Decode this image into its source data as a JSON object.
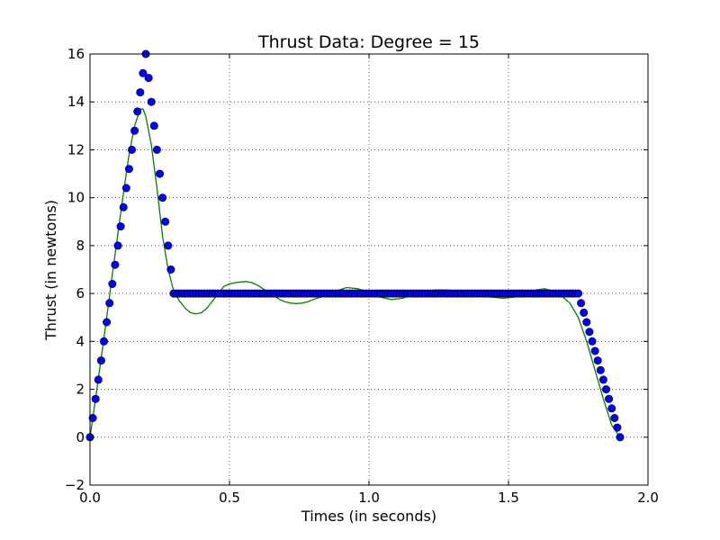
{
  "chart_data": {
    "type": "scatter",
    "title": "Thrust Data: Degree = 15",
    "xlabel": "Times (in seconds)",
    "ylabel": "Thrust (in newtons)",
    "xlim": [
      0.0,
      2.0
    ],
    "ylim": [
      -2,
      16
    ],
    "xticks": [
      "0.0",
      "0.5",
      "1.0",
      "1.5",
      "2.0"
    ],
    "yticks": [
      "−2",
      "0",
      "2",
      "4",
      "6",
      "8",
      "10",
      "12",
      "14",
      "16"
    ],
    "grid": true,
    "series": [
      {
        "kind": "markers",
        "color": "#0000ff",
        "x": [
          0.0,
          0.01,
          0.02,
          0.03,
          0.04,
          0.05,
          0.06,
          0.07,
          0.08,
          0.09,
          0.1,
          0.11,
          0.12,
          0.13,
          0.14,
          0.15,
          0.16,
          0.17,
          0.18,
          0.19,
          0.2,
          0.21,
          0.22,
          0.23,
          0.24,
          0.25,
          0.26,
          0.27,
          0.28,
          0.29,
          0.3,
          0.31,
          0.32,
          0.33,
          0.34,
          0.35,
          0.36,
          0.37,
          0.38,
          0.39,
          0.4,
          0.41,
          0.42,
          0.43,
          0.44,
          0.45,
          0.46,
          0.47,
          0.48,
          0.49,
          0.5,
          0.51,
          0.52,
          0.53,
          0.54,
          0.55,
          0.56,
          0.57,
          0.58,
          0.59,
          0.6,
          0.61,
          0.62,
          0.63,
          0.64,
          0.65,
          0.66,
          0.67,
          0.68,
          0.69,
          0.7,
          0.71,
          0.72,
          0.73,
          0.74,
          0.75,
          0.76,
          0.77,
          0.78,
          0.79,
          0.8,
          0.81,
          0.82,
          0.83,
          0.84,
          0.85,
          0.86,
          0.87,
          0.88,
          0.89,
          0.9,
          0.91,
          0.92,
          0.93,
          0.94,
          0.95,
          0.96,
          0.97,
          0.98,
          0.99,
          1.0,
          1.01,
          1.02,
          1.03,
          1.04,
          1.05,
          1.06,
          1.07,
          1.08,
          1.09,
          1.1,
          1.11,
          1.12,
          1.13,
          1.14,
          1.15,
          1.16,
          1.17,
          1.18,
          1.19,
          1.2,
          1.21,
          1.22,
          1.23,
          1.24,
          1.25,
          1.26,
          1.27,
          1.28,
          1.29,
          1.3,
          1.31,
          1.32,
          1.33,
          1.34,
          1.35,
          1.36,
          1.37,
          1.38,
          1.39,
          1.4,
          1.41,
          1.42,
          1.43,
          1.44,
          1.45,
          1.46,
          1.47,
          1.48,
          1.49,
          1.5,
          1.51,
          1.52,
          1.53,
          1.54,
          1.55,
          1.56,
          1.57,
          1.58,
          1.59,
          1.6,
          1.61,
          1.62,
          1.63,
          1.64,
          1.65,
          1.66,
          1.67,
          1.68,
          1.69,
          1.7,
          1.71,
          1.72,
          1.73,
          1.74,
          1.75,
          1.76,
          1.77,
          1.78,
          1.79,
          1.8,
          1.81,
          1.82,
          1.83,
          1.84,
          1.85,
          1.86,
          1.87,
          1.88,
          1.89,
          1.9
        ],
        "y": [
          0.0,
          0.8,
          1.6,
          2.4,
          3.2,
          4.0,
          4.8,
          5.6,
          6.4,
          7.2,
          8.0,
          8.8,
          9.6,
          10.4,
          11.2,
          12.0,
          12.8,
          13.6,
          14.4,
          15.2,
          16.0,
          15.0,
          14.0,
          13.0,
          12.0,
          11.0,
          10.0,
          9.0,
          8.0,
          7.0,
          6,
          6,
          6,
          6,
          6,
          6,
          6,
          6,
          6,
          6,
          6,
          6,
          6,
          6,
          6,
          6,
          6,
          6,
          6,
          6,
          6,
          6,
          6,
          6,
          6,
          6,
          6,
          6,
          6,
          6,
          6,
          6,
          6,
          6,
          6,
          6,
          6,
          6,
          6,
          6,
          6,
          6,
          6,
          6,
          6,
          6,
          6,
          6,
          6,
          6,
          6,
          6,
          6,
          6,
          6,
          6,
          6,
          6,
          6,
          6,
          6,
          6,
          6,
          6,
          6,
          6,
          6,
          6,
          6,
          6,
          6,
          6,
          6,
          6,
          6,
          6,
          6,
          6,
          6,
          6,
          6,
          6,
          6,
          6,
          6,
          6,
          6,
          6,
          6,
          6,
          6,
          6,
          6,
          6,
          6,
          6,
          6,
          6,
          6,
          6,
          6,
          6,
          6,
          6,
          6,
          6,
          6,
          6,
          6,
          6,
          6,
          6,
          6,
          6,
          6,
          6,
          6,
          6,
          6,
          6,
          6,
          6,
          6,
          6,
          6,
          6,
          6,
          6,
          6,
          6,
          6,
          6,
          6,
          6,
          6,
          6,
          6,
          6,
          6,
          6,
          6,
          6,
          6,
          6,
          6,
          6,
          5.6,
          5.2,
          4.8,
          4.4,
          4.0,
          3.6,
          3.2,
          2.8,
          2.4,
          2.0,
          1.6,
          1.2,
          0.8,
          0.4,
          0.0
        ]
      },
      {
        "kind": "line",
        "color": "#008000",
        "x": [
          0.0,
          0.02,
          0.04,
          0.06,
          0.08,
          0.1,
          0.12,
          0.14,
          0.16,
          0.18,
          0.19,
          0.2,
          0.22,
          0.24,
          0.26,
          0.28,
          0.3,
          0.32,
          0.34,
          0.36,
          0.38,
          0.4,
          0.42,
          0.44,
          0.46,
          0.48,
          0.5,
          0.52,
          0.54,
          0.56,
          0.58,
          0.6,
          0.62,
          0.64,
          0.66,
          0.68,
          0.7,
          0.72,
          0.74,
          0.76,
          0.78,
          0.8,
          0.84,
          0.88,
          0.92,
          0.96,
          1.0,
          1.04,
          1.08,
          1.12,
          1.16,
          1.2,
          1.24,
          1.28,
          1.32,
          1.36,
          1.4,
          1.44,
          1.48,
          1.52,
          1.56,
          1.6,
          1.63,
          1.66,
          1.69,
          1.72,
          1.75,
          1.78,
          1.81,
          1.84,
          1.87,
          1.9
        ],
        "y": [
          0.0,
          1.6,
          3.3,
          5.0,
          6.8,
          8.5,
          10.2,
          11.8,
          13.0,
          13.7,
          13.7,
          13.4,
          12.2,
          10.4,
          8.4,
          7.0,
          6.1,
          5.7,
          5.4,
          5.2,
          5.15,
          5.2,
          5.4,
          5.7,
          6.0,
          6.3,
          6.4,
          6.45,
          6.48,
          6.5,
          6.45,
          6.35,
          6.2,
          6.05,
          5.9,
          5.75,
          5.65,
          5.6,
          5.58,
          5.6,
          5.65,
          5.75,
          5.9,
          6.1,
          6.25,
          6.2,
          6.05,
          5.85,
          5.75,
          5.8,
          5.95,
          6.1,
          6.15,
          6.15,
          6.1,
          6.0,
          5.9,
          5.85,
          5.8,
          5.85,
          6.0,
          6.15,
          6.2,
          6.1,
          5.9,
          5.6,
          5.0,
          4.0,
          2.8,
          1.6,
          0.5,
          0.0
        ]
      }
    ]
  }
}
